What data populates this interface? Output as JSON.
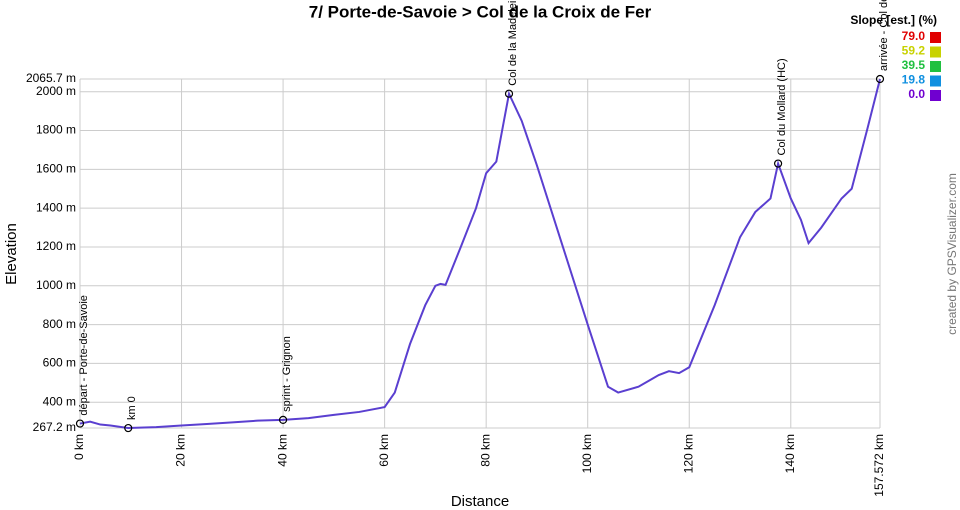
{
  "chart_data": {
    "type": "line",
    "title": "7/ Porte-de-Savoie > Col de la Croix de Fer",
    "x_label": "Distance",
    "y_label": "Elevation",
    "credit": "created by GPSVisualizer.com",
    "color": "#5a3fd0",
    "grid": true,
    "xlim": [
      0,
      157.572
    ],
    "ylim": [
      267.2,
      2065.7
    ],
    "xticks": [
      {
        "value": 0,
        "label": "0 km"
      },
      {
        "value": 20,
        "label": "20 km"
      },
      {
        "value": 40,
        "label": "40 km"
      },
      {
        "value": 60,
        "label": "60 km"
      },
      {
        "value": 80,
        "label": "80 km"
      },
      {
        "value": 100,
        "label": "100 km"
      },
      {
        "value": 120,
        "label": "120 km"
      },
      {
        "value": 140,
        "label": "140 km"
      },
      {
        "value": 157.572,
        "label": "157.572 km"
      }
    ],
    "yticks": [
      {
        "value": 267.2,
        "label": "267.2 m"
      },
      {
        "value": 400,
        "label": "400 m"
      },
      {
        "value": 600,
        "label": "600 m"
      },
      {
        "value": 800,
        "label": "800 m"
      },
      {
        "value": 1000,
        "label": "1000 m"
      },
      {
        "value": 1200,
        "label": "1200 m"
      },
      {
        "value": 1400,
        "label": "1400 m"
      },
      {
        "value": 1600,
        "label": "1600 m"
      },
      {
        "value": 1800,
        "label": "1800 m"
      },
      {
        "value": 2000,
        "label": "2000 m"
      },
      {
        "value": 2065.7,
        "label": "2065.7 m"
      }
    ],
    "x": [
      0,
      2,
      4,
      6,
      9.5,
      15,
      20,
      25,
      30,
      35,
      40,
      45,
      50,
      55,
      60,
      62,
      65,
      68,
      70,
      71,
      72,
      75,
      78,
      80,
      82,
      84.5,
      87,
      90,
      95,
      100,
      104,
      106,
      110,
      114,
      116,
      118,
      120,
      125,
      130,
      133,
      136,
      137.5,
      140,
      142,
      143.5,
      146,
      150,
      152,
      155,
      157.572
    ],
    "values": [
      290,
      300,
      285,
      280,
      267,
      272,
      280,
      288,
      296,
      305,
      309,
      318,
      335,
      350,
      375,
      450,
      700,
      900,
      1000,
      1010,
      1005,
      1200,
      1400,
      1580,
      1640,
      1990,
      1850,
      1620,
      1210,
      800,
      480,
      450,
      480,
      540,
      560,
      550,
      580,
      900,
      1250,
      1380,
      1450,
      1630,
      1450,
      1340,
      1220,
      1300,
      1450,
      1500,
      1800,
      2065.7
    ],
    "waypoints": [
      {
        "name": "départ - Porte-de-Savoie",
        "x": 0,
        "y": 290
      },
      {
        "name": "km 0",
        "x": 9.5,
        "y": 267
      },
      {
        "name": "sprint - Grignon",
        "x": 40,
        "y": 309
      },
      {
        "name": "Col de la Madeleine",
        "x": 84.5,
        "y": 1990
      },
      {
        "name": "Col du Mollard (HC)",
        "x": 137.5,
        "y": 1630
      },
      {
        "name": "arrivée - Col de la Croix de Fer",
        "x": 157.572,
        "y": 2065.7
      }
    ],
    "legend_title": "Slope [est.] (%)",
    "slope_legend": [
      {
        "value": 79,
        "label": "79.0",
        "color": "#e00000"
      },
      {
        "value": 59.2,
        "label": "59.2",
        "color": "#c8d200"
      },
      {
        "value": 39.5,
        "label": "39.5",
        "color": "#20c040"
      },
      {
        "value": 19.8,
        "label": "19.8",
        "color": "#1090e0"
      },
      {
        "value": 0,
        "label": "0.0",
        "color": "#7000d0"
      }
    ]
  }
}
